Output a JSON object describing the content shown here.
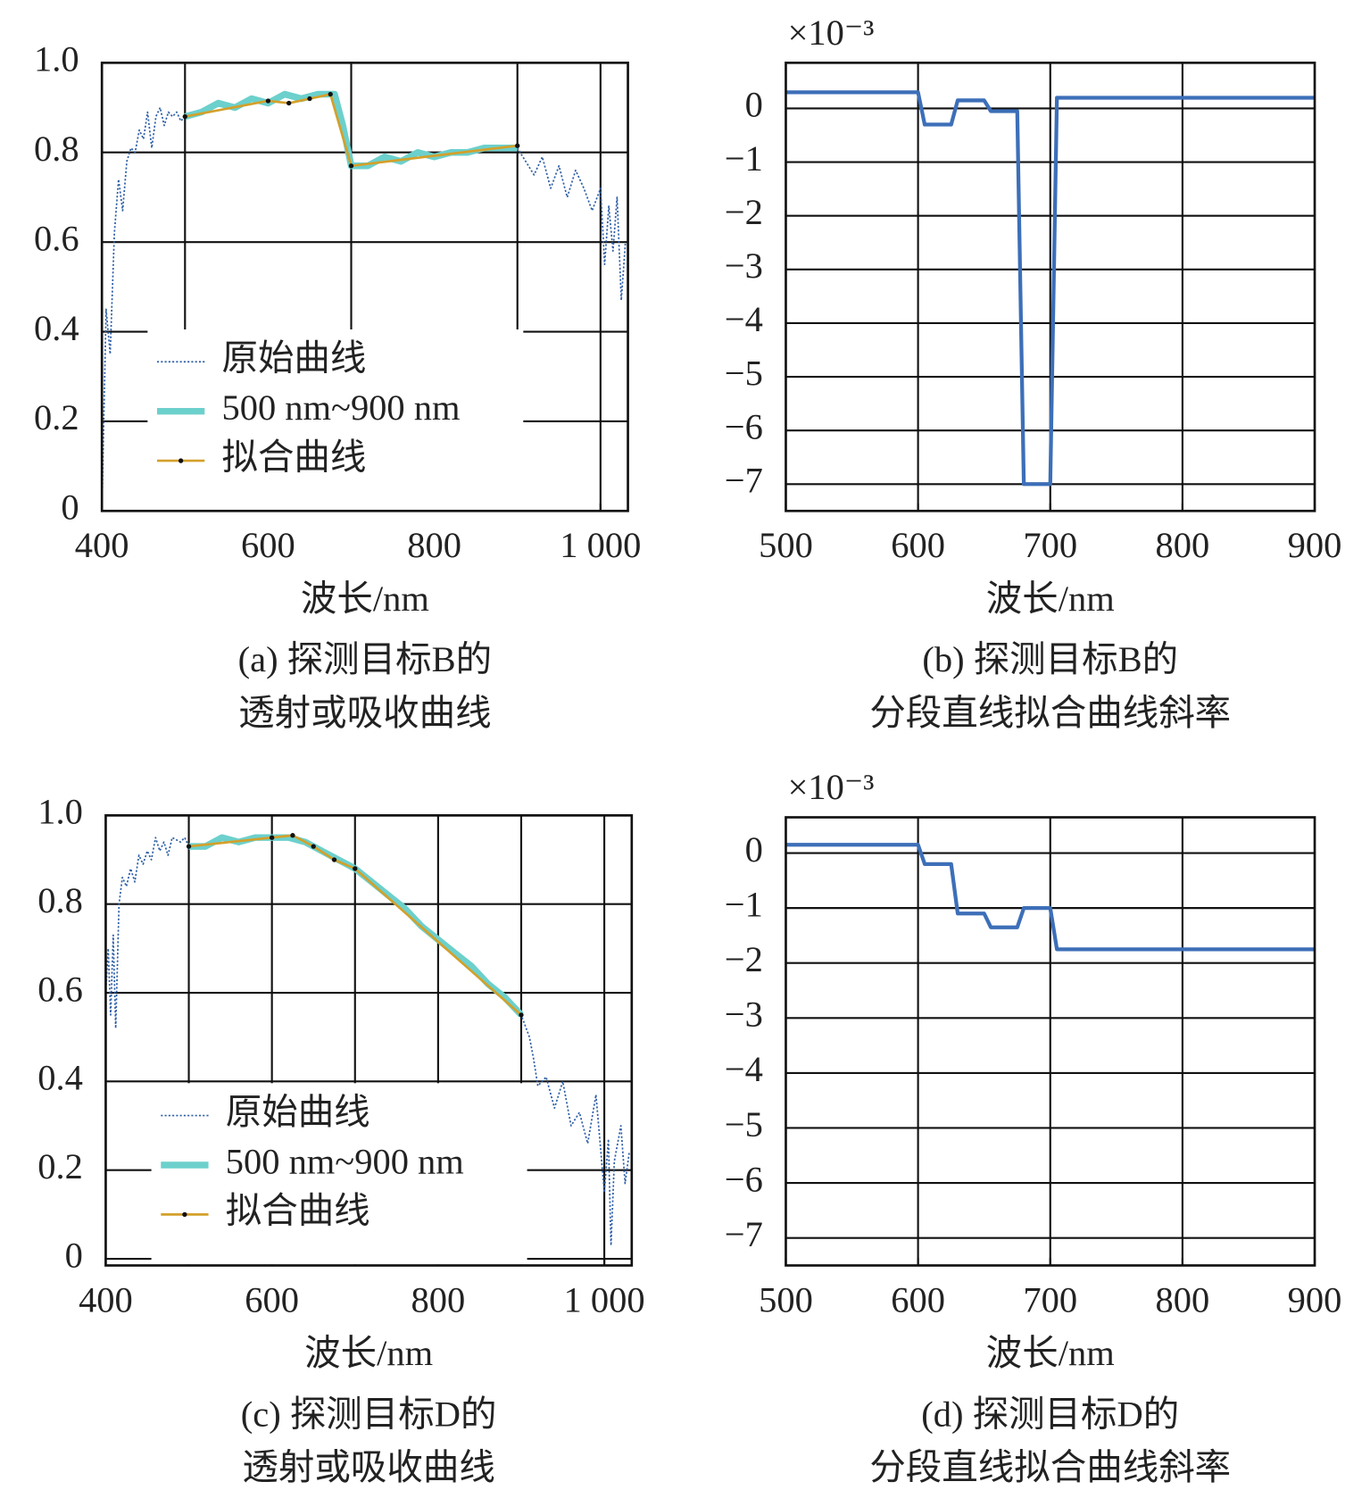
{
  "chart_data": [
    {
      "type": "line",
      "xlabel": "波长/nm",
      "caption": [
        "(a) 探测目标B的",
        "透射或吸收曲线"
      ],
      "xlim": [
        400,
        1033
      ],
      "ylim": [
        0,
        1
      ],
      "xticks": [
        400,
        600,
        800,
        {
          "value": 1000,
          "label": "1 000"
        }
      ],
      "yticks": [
        0,
        0.2,
        0.4,
        0.6,
        0.8,
        {
          "value": 1,
          "label": "1.0"
        }
      ],
      "xgrid": [
        500,
        700,
        900,
        1000
      ],
      "legend": "lower left",
      "series": [
        {
          "name": "原始曲线",
          "color": "#2e5fa6",
          "style": "dotted",
          "x": [
            400,
            405,
            410,
            415,
            420,
            425,
            430,
            435,
            440,
            445,
            450,
            455,
            460,
            465,
            470,
            475,
            480,
            485,
            490,
            495,
            500,
            520,
            540,
            560,
            580,
            600,
            620,
            640,
            660,
            680,
            690,
            700,
            720,
            740,
            760,
            780,
            800,
            820,
            840,
            860,
            880,
            900,
            910,
            920,
            930,
            940,
            950,
            960,
            970,
            980,
            990,
            1000,
            1005,
            1010,
            1015,
            1020,
            1025,
            1030
          ],
          "values": [
            0,
            0.45,
            0.35,
            0.62,
            0.74,
            0.67,
            0.78,
            0.81,
            0.8,
            0.85,
            0.83,
            0.89,
            0.81,
            0.88,
            0.9,
            0.86,
            0.89,
            0.88,
            0.89,
            0.87,
            0.88,
            0.89,
            0.91,
            0.9,
            0.92,
            0.91,
            0.93,
            0.92,
            0.93,
            0.93,
            0.86,
            0.77,
            0.77,
            0.79,
            0.78,
            0.8,
            0.79,
            0.8,
            0.8,
            0.81,
            0.81,
            0.81,
            0.78,
            0.75,
            0.79,
            0.72,
            0.77,
            0.7,
            0.76,
            0.72,
            0.67,
            0.72,
            0.55,
            0.68,
            0.58,
            0.7,
            0.47,
            0.6
          ]
        },
        {
          "name": "500 nm~900 nm",
          "color": "#6cd0cc",
          "style": "thick",
          "x": [
            500,
            520,
            540,
            560,
            580,
            600,
            620,
            640,
            660,
            680,
            690,
            700,
            720,
            740,
            760,
            780,
            800,
            820,
            840,
            860,
            880,
            900
          ],
          "values": [
            0.88,
            0.89,
            0.91,
            0.9,
            0.92,
            0.91,
            0.93,
            0.92,
            0.93,
            0.93,
            0.86,
            0.77,
            0.77,
            0.79,
            0.78,
            0.8,
            0.79,
            0.8,
            0.8,
            0.81,
            0.81,
            0.81
          ]
        },
        {
          "name": "拟合曲线",
          "color": "#d4a02a",
          "style": "marker",
          "x": [
            500,
            600,
            625,
            650,
            675,
            700,
            900
          ],
          "values": [
            0.88,
            0.915,
            0.91,
            0.92,
            0.93,
            0.77,
            0.815
          ]
        }
      ]
    },
    {
      "type": "line",
      "xlabel": "波长/nm",
      "caption": [
        "(b) 探测目标B的",
        "分段直线拟合曲线斜率"
      ],
      "y_multiplier": "×10⁻³",
      "xlim": [
        500,
        900
      ],
      "ylim": [
        -7.5,
        0.85
      ],
      "xticks": [
        500,
        600,
        700,
        800,
        900
      ],
      "yticks": [
        {
          "value": -7,
          "label": "−7"
        },
        {
          "value": -6,
          "label": "−6"
        },
        {
          "value": -5,
          "label": "−5"
        },
        {
          "value": -4,
          "label": "−4"
        },
        {
          "value": -3,
          "label": "−3"
        },
        {
          "value": -2,
          "label": "−2"
        },
        {
          "value": -1,
          "label": "−1"
        },
        0
      ],
      "xgrid": [
        600,
        700,
        800
      ],
      "series": [
        {
          "color": "#3d6fb8",
          "style": "solid",
          "x": [
            500,
            600,
            605,
            625,
            630,
            650,
            655,
            675,
            680,
            700,
            705,
            900
          ],
          "values": [
            0.3,
            0.3,
            -0.3,
            -0.3,
            0.15,
            0.15,
            -0.05,
            -0.05,
            -7,
            -7,
            0.2,
            0.2
          ]
        }
      ]
    },
    {
      "type": "line",
      "xlabel": "波长/nm",
      "caption": [
        "(c) 探测目标D的",
        "透射或吸收曲线"
      ],
      "xlim": [
        400,
        1033
      ],
      "ylim": [
        -0.015,
        1
      ],
      "xticks": [
        400,
        600,
        800,
        {
          "value": 1000,
          "label": "1 000"
        }
      ],
      "yticks": [
        0,
        0.2,
        0.4,
        0.6,
        0.8,
        {
          "value": 1,
          "label": "1.0"
        }
      ],
      "xgrid": [
        500,
        600,
        700,
        800,
        900,
        1000
      ],
      "legend": "lower left",
      "series": [
        {
          "name": "原始曲线",
          "color": "#2e5fa6",
          "style": "dotted",
          "x": [
            400,
            403,
            406,
            409,
            412,
            416,
            420,
            425,
            430,
            435,
            440,
            445,
            450,
            455,
            460,
            465,
            470,
            475,
            480,
            490,
            495,
            500,
            520,
            540,
            560,
            580,
            600,
            620,
            640,
            660,
            680,
            700,
            720,
            740,
            760,
            780,
            800,
            820,
            840,
            860,
            880,
            900,
            910,
            915,
            920,
            930,
            940,
            950,
            960,
            970,
            980,
            990,
            1000,
            1005,
            1008,
            1012,
            1020,
            1025,
            1030
          ],
          "values": [
            0.6,
            0.7,
            0.55,
            0.73,
            0.52,
            0.8,
            0.86,
            0.84,
            0.88,
            0.85,
            0.91,
            0.89,
            0.92,
            0.9,
            0.95,
            0.92,
            0.94,
            0.91,
            0.95,
            0.94,
            0.95,
            0.93,
            0.93,
            0.95,
            0.94,
            0.95,
            0.95,
            0.95,
            0.94,
            0.92,
            0.9,
            0.88,
            0.85,
            0.82,
            0.79,
            0.75,
            0.72,
            0.69,
            0.66,
            0.62,
            0.59,
            0.55,
            0.5,
            0.45,
            0.39,
            0.41,
            0.34,
            0.4,
            0.3,
            0.33,
            0.26,
            0.37,
            0.15,
            0.27,
            0.03,
            0.22,
            0.3,
            0.17,
            0.24
          ]
        },
        {
          "name": "500 nm~900 nm",
          "color": "#6cd0cc",
          "style": "thick",
          "x": [
            500,
            520,
            540,
            560,
            580,
            600,
            620,
            640,
            660,
            680,
            700,
            720,
            740,
            760,
            780,
            800,
            820,
            840,
            860,
            880,
            900
          ],
          "values": [
            0.93,
            0.93,
            0.95,
            0.94,
            0.95,
            0.95,
            0.95,
            0.94,
            0.92,
            0.9,
            0.88,
            0.85,
            0.82,
            0.79,
            0.75,
            0.72,
            0.69,
            0.66,
            0.62,
            0.59,
            0.55
          ]
        },
        {
          "name": "拟合曲线",
          "color": "#d4a02a",
          "style": "marker",
          "x": [
            500,
            600,
            625,
            650,
            675,
            700,
            900
          ],
          "values": [
            0.93,
            0.95,
            0.955,
            0.93,
            0.9,
            0.88,
            0.55
          ]
        }
      ]
    },
    {
      "type": "line",
      "xlabel": "波长/nm",
      "caption": [
        "(d) 探测目标D的",
        "分段直线拟合曲线斜率"
      ],
      "y_multiplier": "×10⁻³",
      "xlim": [
        500,
        900
      ],
      "ylim": [
        -7.5,
        0.65
      ],
      "xticks": [
        500,
        600,
        700,
        800,
        900
      ],
      "yticks": [
        {
          "value": -7,
          "label": "−7"
        },
        {
          "value": -6,
          "label": "−6"
        },
        {
          "value": -5,
          "label": "−5"
        },
        {
          "value": -4,
          "label": "−4"
        },
        {
          "value": -3,
          "label": "−3"
        },
        {
          "value": -2,
          "label": "−2"
        },
        {
          "value": -1,
          "label": "−1"
        },
        0
      ],
      "xgrid": [
        600,
        700,
        800
      ],
      "series": [
        {
          "color": "#3d6fb8",
          "style": "solid",
          "x": [
            500,
            600,
            605,
            625,
            630,
            650,
            655,
            675,
            680,
            700,
            705,
            900
          ],
          "values": [
            0.15,
            0.15,
            -0.2,
            -0.2,
            -1.1,
            -1.1,
            -1.35,
            -1.35,
            -1,
            -1,
            -1.75,
            -1.75
          ]
        }
      ]
    }
  ]
}
